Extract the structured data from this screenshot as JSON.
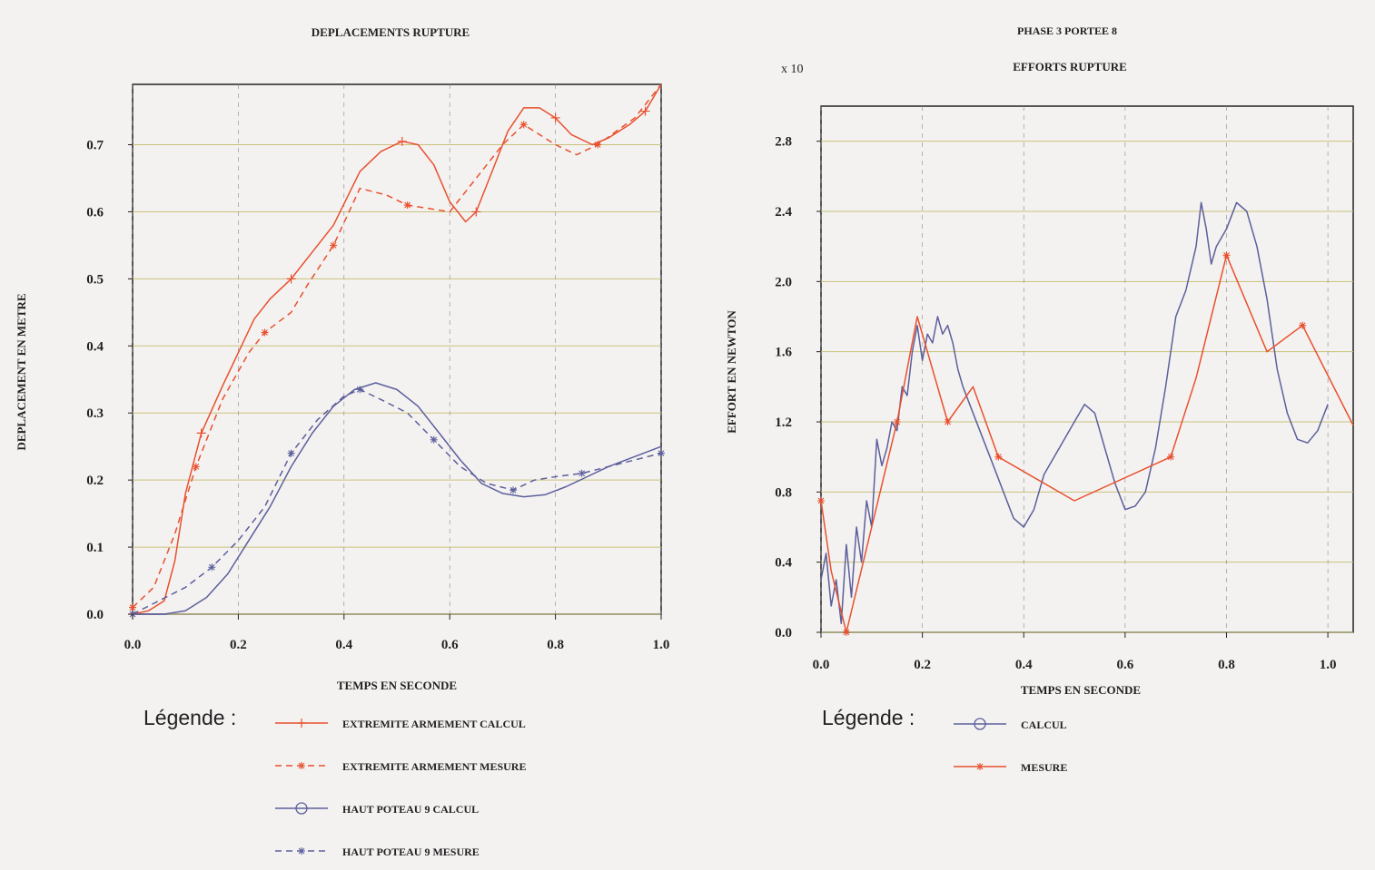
{
  "page": {
    "left_header": "DEPLACEMENTS RUPTURE",
    "right_header": "PHASE 3 PORTEE 8",
    "legend_word": "Légende :"
  },
  "colors": {
    "background": "#f4f2f1",
    "grid": "#c9c27a",
    "frame": "#222222",
    "red": "#e8502e",
    "blue": "#5c5f9c"
  },
  "chart_data": [
    {
      "type": "line",
      "title": "DEPLACEMENTS RUPTURE",
      "xlabel": "TEMPS EN SECONDE",
      "ylabel": "DEPLACEMENT EN METRE",
      "xlim": [
        0,
        1.0
      ],
      "ylim": [
        0,
        0.79
      ],
      "xticks": [
        "0.0",
        "0.2",
        "0.4",
        "0.6",
        "0.8",
        "1.0"
      ],
      "yticks": [
        "0.0",
        "0.1",
        "0.2",
        "0.3",
        "0.4",
        "0.5",
        "0.6",
        "0.7"
      ],
      "grid": true,
      "legend_position": "bottom",
      "series": [
        {
          "name": "EXTREMITE ARMEMENT CALCUL",
          "color": "#e8502e",
          "dash": false,
          "marker": "plus",
          "points": [
            [
              0,
              0
            ],
            [
              0.03,
              0.005
            ],
            [
              0.06,
              0.02
            ],
            [
              0.08,
              0.08
            ],
            [
              0.1,
              0.18
            ],
            [
              0.13,
              0.27
            ],
            [
              0.17,
              0.34
            ],
            [
              0.2,
              0.39
            ],
            [
              0.23,
              0.44
            ],
            [
              0.26,
              0.47
            ],
            [
              0.3,
              0.5
            ],
            [
              0.34,
              0.54
            ],
            [
              0.38,
              0.58
            ],
            [
              0.43,
              0.66
            ],
            [
              0.47,
              0.69
            ],
            [
              0.51,
              0.705
            ],
            [
              0.54,
              0.7
            ],
            [
              0.57,
              0.67
            ],
            [
              0.6,
              0.615
            ],
            [
              0.63,
              0.585
            ],
            [
              0.65,
              0.6
            ],
            [
              0.68,
              0.66
            ],
            [
              0.71,
              0.72
            ],
            [
              0.74,
              0.755
            ],
            [
              0.77,
              0.755
            ],
            [
              0.8,
              0.74
            ],
            [
              0.83,
              0.715
            ],
            [
              0.87,
              0.7
            ],
            [
              0.9,
              0.71
            ],
            [
              0.94,
              0.73
            ],
            [
              0.97,
              0.75
            ],
            [
              1.0,
              0.79
            ]
          ]
        },
        {
          "name": "EXTREMITE ARMEMENT MESURE",
          "color": "#e8502e",
          "dash": true,
          "marker": "star",
          "points": [
            [
              0,
              0.01
            ],
            [
              0.04,
              0.04
            ],
            [
              0.08,
              0.12
            ],
            [
              0.12,
              0.22
            ],
            [
              0.17,
              0.32
            ],
            [
              0.22,
              0.39
            ],
            [
              0.25,
              0.42
            ],
            [
              0.3,
              0.45
            ],
            [
              0.33,
              0.49
            ],
            [
              0.38,
              0.55
            ],
            [
              0.43,
              0.635
            ],
            [
              0.48,
              0.625
            ],
            [
              0.52,
              0.61
            ],
            [
              0.6,
              0.6
            ],
            [
              0.7,
              0.7
            ],
            [
              0.74,
              0.73
            ],
            [
              0.8,
              0.7
            ],
            [
              0.84,
              0.685
            ],
            [
              0.88,
              0.7
            ],
            [
              0.95,
              0.74
            ],
            [
              1.0,
              0.79
            ]
          ]
        },
        {
          "name": "HAUT POTEAU 9 CALCUL",
          "color": "#5c5f9c",
          "dash": false,
          "marker": "circle",
          "points": [
            [
              0,
              0
            ],
            [
              0.03,
              0
            ],
            [
              0.06,
              0
            ],
            [
              0.1,
              0.005
            ],
            [
              0.14,
              0.025
            ],
            [
              0.18,
              0.06
            ],
            [
              0.22,
              0.11
            ],
            [
              0.26,
              0.16
            ],
            [
              0.3,
              0.22
            ],
            [
              0.34,
              0.27
            ],
            [
              0.38,
              0.31
            ],
            [
              0.42,
              0.335
            ],
            [
              0.46,
              0.345
            ],
            [
              0.5,
              0.335
            ],
            [
              0.54,
              0.31
            ],
            [
              0.58,
              0.27
            ],
            [
              0.62,
              0.23
            ],
            [
              0.66,
              0.195
            ],
            [
              0.7,
              0.18
            ],
            [
              0.74,
              0.175
            ],
            [
              0.78,
              0.178
            ],
            [
              0.82,
              0.19
            ],
            [
              0.86,
              0.205
            ],
            [
              0.9,
              0.22
            ],
            [
              0.95,
              0.235
            ],
            [
              1.0,
              0.25
            ]
          ]
        },
        {
          "name": "HAUT POTEAU 9 MESURE",
          "color": "#5c5f9c",
          "dash": true,
          "marker": "star",
          "points": [
            [
              0,
              0
            ],
            [
              0.05,
              0.02
            ],
            [
              0.1,
              0.04
            ],
            [
              0.15,
              0.07
            ],
            [
              0.2,
              0.11
            ],
            [
              0.25,
              0.16
            ],
            [
              0.3,
              0.24
            ],
            [
              0.35,
              0.29
            ],
            [
              0.4,
              0.325
            ],
            [
              0.43,
              0.335
            ],
            [
              0.47,
              0.32
            ],
            [
              0.52,
              0.3
            ],
            [
              0.57,
              0.26
            ],
            [
              0.62,
              0.22
            ],
            [
              0.67,
              0.195
            ],
            [
              0.72,
              0.185
            ],
            [
              0.76,
              0.2
            ],
            [
              0.8,
              0.205
            ],
            [
              0.85,
              0.21
            ],
            [
              0.9,
              0.22
            ],
            [
              0.95,
              0.23
            ],
            [
              1.0,
              0.24
            ]
          ]
        }
      ]
    },
    {
      "type": "line",
      "title": "EFFORTS RUPTURE",
      "subtitle": "PHASE 3 PORTEE 8",
      "scale_label": "x 10",
      "xlabel": "TEMPS EN SECONDE",
      "ylabel": "EFFORT EN NEWTON",
      "xlim": [
        0,
        1.05
      ],
      "ylim": [
        0,
        3.0
      ],
      "xticks": [
        "0.0",
        "0.2",
        "0.4",
        "0.6",
        "0.8",
        "1.0"
      ],
      "yticks": [
        "0.0",
        "0.4",
        "0.8",
        "1.2",
        "1.6",
        "2.0",
        "2.4",
        "2.8"
      ],
      "grid": true,
      "legend_position": "bottom",
      "series": [
        {
          "name": "CALCUL",
          "color": "#5c5f9c",
          "dash": false,
          "marker": "circle",
          "points": [
            [
              0,
              0.3
            ],
            [
              0.01,
              0.45
            ],
            [
              0.02,
              0.15
            ],
            [
              0.03,
              0.3
            ],
            [
              0.04,
              0.05
            ],
            [
              0.05,
              0.5
            ],
            [
              0.06,
              0.2
            ],
            [
              0.07,
              0.6
            ],
            [
              0.08,
              0.4
            ],
            [
              0.09,
              0.75
            ],
            [
              0.1,
              0.6
            ],
            [
              0.11,
              1.1
            ],
            [
              0.12,
              0.95
            ],
            [
              0.13,
              1.05
            ],
            [
              0.14,
              1.2
            ],
            [
              0.15,
              1.15
            ],
            [
              0.16,
              1.4
            ],
            [
              0.17,
              1.35
            ],
            [
              0.18,
              1.6
            ],
            [
              0.19,
              1.75
            ],
            [
              0.2,
              1.55
            ],
            [
              0.21,
              1.7
            ],
            [
              0.22,
              1.65
            ],
            [
              0.23,
              1.8
            ],
            [
              0.24,
              1.7
            ],
            [
              0.25,
              1.75
            ],
            [
              0.26,
              1.65
            ],
            [
              0.27,
              1.5
            ],
            [
              0.28,
              1.4
            ],
            [
              0.3,
              1.25
            ],
            [
              0.32,
              1.1
            ],
            [
              0.34,
              0.95
            ],
            [
              0.36,
              0.8
            ],
            [
              0.38,
              0.65
            ],
            [
              0.4,
              0.6
            ],
            [
              0.42,
              0.7
            ],
            [
              0.44,
              0.9
            ],
            [
              0.47,
              1.05
            ],
            [
              0.5,
              1.2
            ],
            [
              0.52,
              1.3
            ],
            [
              0.54,
              1.25
            ],
            [
              0.56,
              1.05
            ],
            [
              0.58,
              0.85
            ],
            [
              0.6,
              0.7
            ],
            [
              0.62,
              0.72
            ],
            [
              0.64,
              0.8
            ],
            [
              0.66,
              1.05
            ],
            [
              0.68,
              1.4
            ],
            [
              0.7,
              1.8
            ],
            [
              0.72,
              1.95
            ],
            [
              0.74,
              2.2
            ],
            [
              0.75,
              2.45
            ],
            [
              0.76,
              2.3
            ],
            [
              0.77,
              2.1
            ],
            [
              0.78,
              2.2
            ],
            [
              0.8,
              2.3
            ],
            [
              0.82,
              2.45
            ],
            [
              0.84,
              2.4
            ],
            [
              0.86,
              2.2
            ],
            [
              0.88,
              1.9
            ],
            [
              0.9,
              1.5
            ],
            [
              0.92,
              1.25
            ],
            [
              0.94,
              1.1
            ],
            [
              0.96,
              1.08
            ],
            [
              0.98,
              1.15
            ],
            [
              1.0,
              1.3
            ]
          ]
        },
        {
          "name": "MESURE",
          "color": "#e8502e",
          "dash": false,
          "marker": "star",
          "points": [
            [
              0,
              0.75
            ],
            [
              0.02,
              0.35
            ],
            [
              0.05,
              0.0
            ],
            [
              0.1,
              0.6
            ],
            [
              0.15,
              1.2
            ],
            [
              0.19,
              1.8
            ],
            [
              0.25,
              1.2
            ],
            [
              0.3,
              1.4
            ],
            [
              0.35,
              1.0
            ],
            [
              0.5,
              0.75
            ],
            [
              0.69,
              1.0
            ],
            [
              0.74,
              1.45
            ],
            [
              0.8,
              2.15
            ],
            [
              0.88,
              1.6
            ],
            [
              0.95,
              1.75
            ],
            [
              1.05,
              1.18
            ]
          ]
        }
      ]
    }
  ]
}
